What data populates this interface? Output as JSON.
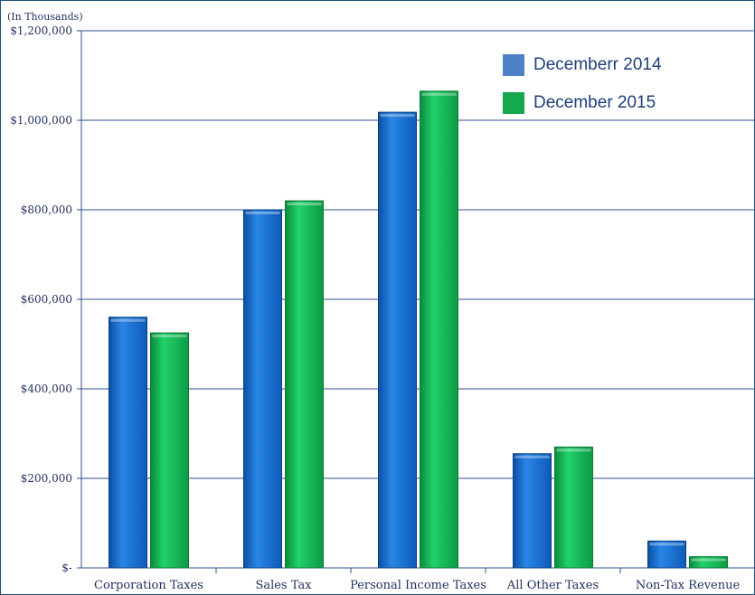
{
  "chart_data": {
    "type": "bar",
    "unit_label": "(In Thousands)",
    "title": "",
    "xlabel": "",
    "ylabel": "",
    "categories": [
      "Corporation Taxes",
      "Sales Tax",
      "Personal Income Taxes",
      "All Other Taxes",
      "Non-Tax Revenue"
    ],
    "series": [
      {
        "name": "Decemberr 2014",
        "color": "#1f6fd1",
        "values": [
          560000,
          800000,
          1018000,
          255000,
          60000
        ]
      },
      {
        "name": "December 2015",
        "color": "#16b856",
        "values": [
          525000,
          820000,
          1065000,
          270000,
          25000
        ]
      }
    ],
    "ylim": [
      0,
      1200000
    ],
    "yticks": [
      0,
      200000,
      400000,
      600000,
      800000,
      1000000,
      1200000
    ],
    "ytick_labels": [
      "$-",
      "$200,000",
      "$400,000",
      "$600,000",
      "$800,000",
      "$1,000,000",
      "$1,200,000"
    ],
    "grid": true,
    "legend_position": "top-right"
  }
}
